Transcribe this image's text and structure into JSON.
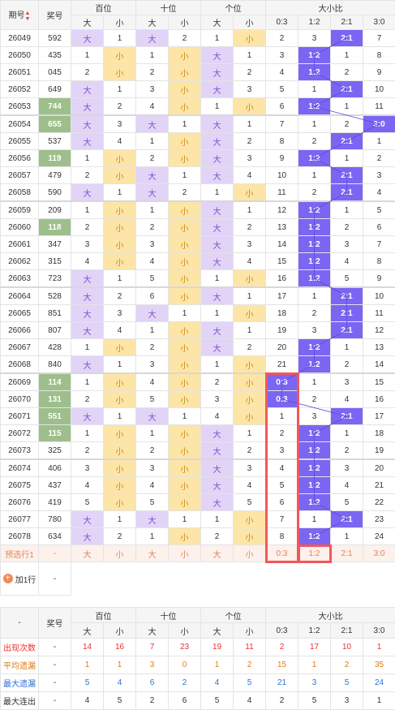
{
  "header": {
    "period_label": "期号",
    "number_label": "奖号",
    "hundreds": "百位",
    "tens": "十位",
    "units": "个位",
    "ratio": "大小比",
    "big": "大",
    "small": "小",
    "ratios": [
      "0:3",
      "1:2",
      "2:1",
      "3:0"
    ],
    "sort_icon": "sort-updown"
  },
  "colors": {
    "big_bg": "#e1d4f7",
    "small_bg": "#fde5a8",
    "ratio_hit": "#7a66f2",
    "green_number": "#9ebf8c",
    "highlight_box": "#f2575a"
  },
  "rows": [
    {
      "p": "26049",
      "n": "592",
      "g": false,
      "h": "大",
      "hv": "1",
      "t": "大",
      "tv": "2",
      "u": "1",
      "uv": "小",
      "r": [
        "2",
        "3",
        "2:1",
        "7"
      ],
      "hit": 2
    },
    {
      "p": "26050",
      "n": "435",
      "g": false,
      "h": "1",
      "hv": "小",
      "t": "1",
      "tv": "小",
      "u": "大",
      "uv": "1",
      "r": [
        "3",
        "1:2",
        "1",
        "8"
      ],
      "hit": 1
    },
    {
      "p": "26051",
      "n": "045",
      "g": false,
      "h": "2",
      "hv": "小",
      "t": "2",
      "tv": "小",
      "u": "大",
      "uv": "2",
      "r": [
        "4",
        "1:2",
        "2",
        "9"
      ],
      "hit": 1
    },
    {
      "p": "26052",
      "n": "649",
      "g": false,
      "h": "大",
      "hv": "1",
      "t": "3",
      "tv": "小",
      "u": "大",
      "uv": "3",
      "r": [
        "5",
        "1",
        "2:1",
        "10"
      ],
      "hit": 2
    },
    {
      "p": "26053",
      "n": "744",
      "g": true,
      "h": "大",
      "hv": "2",
      "t": "4",
      "tv": "小",
      "u": "1",
      "uv": "小",
      "r": [
        "6",
        "1:2",
        "1",
        "11"
      ],
      "hit": 1
    },
    {
      "p": "26054",
      "n": "655",
      "g": true,
      "h": "大",
      "hv": "3",
      "t": "大",
      "tv": "1",
      "u": "大",
      "uv": "1",
      "r": [
        "7",
        "1",
        "2",
        "3:0"
      ],
      "hit": 3
    },
    {
      "p": "26055",
      "n": "537",
      "g": false,
      "h": "大",
      "hv": "4",
      "t": "1",
      "tv": "小",
      "u": "大",
      "uv": "2",
      "r": [
        "8",
        "2",
        "2:1",
        "1"
      ],
      "hit": 2
    },
    {
      "p": "26056",
      "n": "119",
      "g": true,
      "h": "1",
      "hv": "小",
      "t": "2",
      "tv": "小",
      "u": "大",
      "uv": "3",
      "r": [
        "9",
        "1:2",
        "1",
        "2"
      ],
      "hit": 1
    },
    {
      "p": "26057",
      "n": "479",
      "g": false,
      "h": "2",
      "hv": "小",
      "t": "大",
      "tv": "1",
      "u": "大",
      "uv": "4",
      "r": [
        "10",
        "1",
        "2:1",
        "3"
      ],
      "hit": 2
    },
    {
      "p": "26058",
      "n": "590",
      "g": false,
      "h": "大",
      "hv": "1",
      "t": "大",
      "tv": "2",
      "u": "1",
      "uv": "小",
      "r": [
        "11",
        "2",
        "2:1",
        "4"
      ],
      "hit": 2
    },
    {
      "p": "26059",
      "n": "209",
      "g": false,
      "h": "1",
      "hv": "小",
      "t": "1",
      "tv": "小",
      "u": "大",
      "uv": "1",
      "r": [
        "12",
        "1:2",
        "1",
        "5"
      ],
      "hit": 1
    },
    {
      "p": "26060",
      "n": "118",
      "g": true,
      "h": "2",
      "hv": "小",
      "t": "2",
      "tv": "小",
      "u": "大",
      "uv": "2",
      "r": [
        "13",
        "1:2",
        "2",
        "6"
      ],
      "hit": 1
    },
    {
      "p": "26061",
      "n": "347",
      "g": false,
      "h": "3",
      "hv": "小",
      "t": "3",
      "tv": "小",
      "u": "大",
      "uv": "3",
      "r": [
        "14",
        "1:2",
        "3",
        "7"
      ],
      "hit": 1
    },
    {
      "p": "26062",
      "n": "315",
      "g": false,
      "h": "4",
      "hv": "小",
      "t": "4",
      "tv": "小",
      "u": "大",
      "uv": "4",
      "r": [
        "15",
        "1:2",
        "4",
        "8"
      ],
      "hit": 1
    },
    {
      "p": "26063",
      "n": "723",
      "g": false,
      "h": "大",
      "hv": "1",
      "t": "5",
      "tv": "小",
      "u": "1",
      "uv": "小",
      "r": [
        "16",
        "1:2",
        "5",
        "9"
      ],
      "hit": 1
    },
    {
      "p": "26064",
      "n": "528",
      "g": false,
      "h": "大",
      "hv": "2",
      "t": "6",
      "tv": "小",
      "u": "大",
      "uv": "1",
      "r": [
        "17",
        "1",
        "2:1",
        "10"
      ],
      "hit": 2
    },
    {
      "p": "26065",
      "n": "851",
      "g": false,
      "h": "大",
      "hv": "3",
      "t": "大",
      "tv": "1",
      "u": "1",
      "uv": "小",
      "r": [
        "18",
        "2",
        "2:1",
        "11"
      ],
      "hit": 2
    },
    {
      "p": "26066",
      "n": "807",
      "g": false,
      "h": "大",
      "hv": "4",
      "t": "1",
      "tv": "小",
      "u": "大",
      "uv": "1",
      "r": [
        "19",
        "3",
        "2:1",
        "12"
      ],
      "hit": 2
    },
    {
      "p": "26067",
      "n": "428",
      "g": false,
      "h": "1",
      "hv": "小",
      "t": "2",
      "tv": "小",
      "u": "大",
      "uv": "2",
      "r": [
        "20",
        "1:2",
        "1",
        "13"
      ],
      "hit": 1
    },
    {
      "p": "26068",
      "n": "840",
      "g": false,
      "h": "大",
      "hv": "1",
      "t": "3",
      "tv": "小",
      "u": "1",
      "uv": "小",
      "r": [
        "21",
        "1:2",
        "2",
        "14"
      ],
      "hit": 1
    },
    {
      "p": "26069",
      "n": "114",
      "g": true,
      "h": "1",
      "hv": "小",
      "t": "4",
      "tv": "小",
      "u": "2",
      "uv": "小",
      "r": [
        "0:3",
        "1",
        "3",
        "15"
      ],
      "hit": 0
    },
    {
      "p": "26070",
      "n": "131",
      "g": true,
      "h": "2",
      "hv": "小",
      "t": "5",
      "tv": "小",
      "u": "3",
      "uv": "小",
      "r": [
        "0:3",
        "2",
        "4",
        "16"
      ],
      "hit": 0
    },
    {
      "p": "26071",
      "n": "551",
      "g": true,
      "h": "大",
      "hv": "1",
      "t": "大",
      "tv": "1",
      "u": "4",
      "uv": "小",
      "r": [
        "1",
        "3",
        "2:1",
        "17"
      ],
      "hit": 2
    },
    {
      "p": "26072",
      "n": "115",
      "g": true,
      "h": "1",
      "hv": "小",
      "t": "1",
      "tv": "小",
      "u": "大",
      "uv": "1",
      "r": [
        "2",
        "1:2",
        "1",
        "18"
      ],
      "hit": 1
    },
    {
      "p": "26073",
      "n": "325",
      "g": false,
      "h": "2",
      "hv": "小",
      "t": "2",
      "tv": "小",
      "u": "大",
      "uv": "2",
      "r": [
        "3",
        "1:2",
        "2",
        "19"
      ],
      "hit": 1
    },
    {
      "p": "26074",
      "n": "406",
      "g": false,
      "h": "3",
      "hv": "小",
      "t": "3",
      "tv": "小",
      "u": "大",
      "uv": "3",
      "r": [
        "4",
        "1:2",
        "3",
        "20"
      ],
      "hit": 1
    },
    {
      "p": "26075",
      "n": "437",
      "g": false,
      "h": "4",
      "hv": "小",
      "t": "4",
      "tv": "小",
      "u": "大",
      "uv": "4",
      "r": [
        "5",
        "1:2",
        "4",
        "21"
      ],
      "hit": 1
    },
    {
      "p": "26076",
      "n": "419",
      "g": false,
      "h": "5",
      "hv": "小",
      "t": "5",
      "tv": "小",
      "u": "大",
      "uv": "5",
      "r": [
        "6",
        "1:2",
        "5",
        "22"
      ],
      "hit": 1
    },
    {
      "p": "26077",
      "n": "780",
      "g": false,
      "h": "大",
      "hv": "1",
      "t": "大",
      "tv": "1",
      "u": "1",
      "uv": "小",
      "r": [
        "7",
        "1",
        "2:1",
        "23"
      ],
      "hit": 2
    },
    {
      "p": "26078",
      "n": "634",
      "g": false,
      "h": "大",
      "hv": "2",
      "t": "1",
      "tv": "小",
      "u": "2",
      "uv": "小",
      "r": [
        "8",
        "1:2",
        "1",
        "24"
      ],
      "hit": 1
    }
  ],
  "forecast": {
    "label": "预选行1",
    "number": "-",
    "cells": [
      "大",
      "小",
      "大",
      "小",
      "大",
      "小",
      "0:3",
      "1:2",
      "2:1",
      "3:0"
    ]
  },
  "add_row": {
    "icon": "plus-circle",
    "label": "加1行",
    "value": "-"
  },
  "stats": {
    "dash": "-",
    "number_label": "奖号",
    "rows": [
      {
        "label": "出现次数",
        "num": "-",
        "vals": [
          "14",
          "16",
          "7",
          "23",
          "19",
          "11",
          "2",
          "17",
          "10",
          "1"
        ],
        "color": "red"
      },
      {
        "label": "平均遗漏",
        "num": "-",
        "vals": [
          "1",
          "1",
          "3",
          "0",
          "1",
          "2",
          "15",
          "1",
          "2",
          "35"
        ],
        "color": "orange"
      },
      {
        "label": "最大遗漏",
        "num": "-",
        "vals": [
          "5",
          "4",
          "6",
          "2",
          "4",
          "5",
          "21",
          "3",
          "5",
          "24"
        ],
        "color": "blue"
      },
      {
        "label": "最大连出",
        "num": "-",
        "vals": [
          "4",
          "5",
          "2",
          "6",
          "5",
          "4",
          "2",
          "5",
          "3",
          "1"
        ],
        "color": "dark"
      }
    ]
  }
}
